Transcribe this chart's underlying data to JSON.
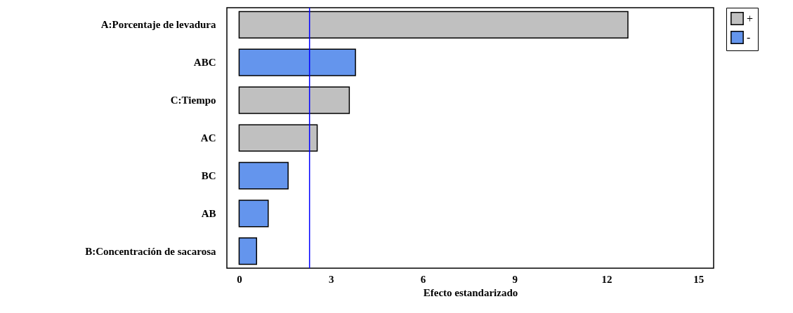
{
  "chart_data": {
    "type": "bar",
    "orientation": "horizontal",
    "xlabel": "Efecto estandarizado",
    "categories": [
      "A:Porcentaje de levadura",
      "ABC",
      "C:Tiempo",
      "AC",
      "BC",
      "AB",
      "B:Concentración de sacarosa"
    ],
    "series": [
      {
        "name": "+",
        "color": "#c0c0c0",
        "values": [
          12.7,
          null,
          3.6,
          2.55,
          null,
          null,
          null
        ]
      },
      {
        "name": "-",
        "color": "#6495ed",
        "values": [
          null,
          3.8,
          null,
          null,
          1.6,
          0.95,
          0.57
        ]
      }
    ],
    "xlim": [
      -0.4,
      15.5
    ],
    "xticks": [
      0,
      3,
      6,
      9,
      12,
      15
    ],
    "ref_lines": [
      {
        "axis": "x",
        "value": 2.3,
        "color": "#0000ff"
      }
    ],
    "grid": false,
    "legend": "top right"
  }
}
